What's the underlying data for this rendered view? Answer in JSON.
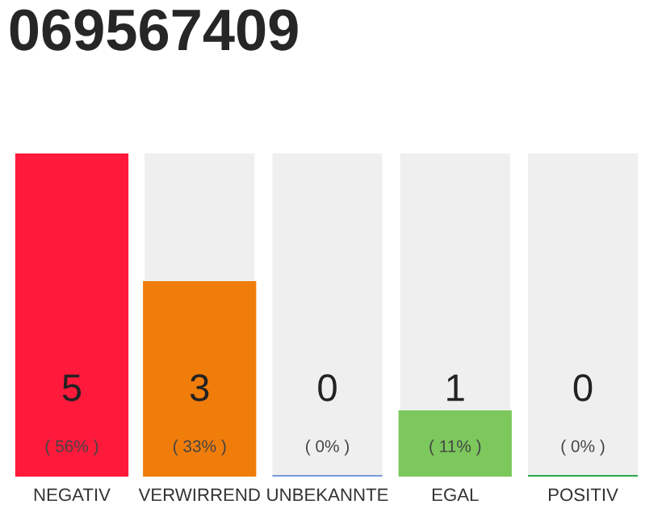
{
  "chart_data": {
    "type": "bar",
    "title": "069567409",
    "categories": [
      "NEGATIV",
      "VERWIRREND",
      "UNBEKANNTE",
      "EGAL",
      "POSITIV"
    ],
    "values": [
      5,
      3,
      0,
      1,
      0
    ],
    "colors": [
      "#ff1a3c",
      "#f07d0a",
      "#7799dd",
      "#7cc85c",
      "#2aa84a"
    ],
    "value_labels": [
      "5",
      "3",
      "0",
      "1",
      "0"
    ],
    "annotations": [
      "( 56% )",
      "( 33% )",
      "( 0% )",
      "( 11% )",
      "( 0% )"
    ],
    "grid": false,
    "legend": false
  }
}
